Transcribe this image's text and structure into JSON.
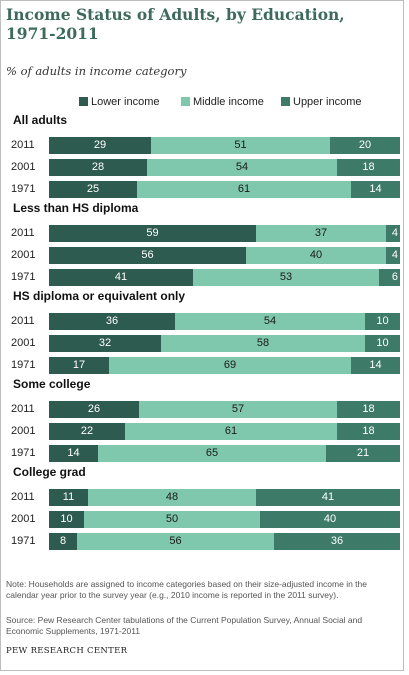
{
  "title": "Income Status of Adults, by Education, 1971-2011",
  "subtitle": "% of adults in income category",
  "colors": {
    "lower": "#2e5b4f",
    "middle": "#7fc8ae",
    "upper": "#3d7a67",
    "label_light": "#ffffff",
    "label_dark": "#1a1a1a",
    "title": "#3e6a5e"
  },
  "legend": [
    {
      "name": "Lower income",
      "color": "#2e5b4f"
    },
    {
      "name": "Middle income",
      "color": "#7fc8ae"
    },
    {
      "name": "Upper income",
      "color": "#3d7a67"
    }
  ],
  "chart_data": {
    "type": "bar",
    "stacked": true,
    "orientation": "horizontal",
    "xlim": [
      0,
      100
    ],
    "series_names": [
      "Lower income",
      "Middle income",
      "Upper income"
    ],
    "groups": [
      {
        "name": "All adults",
        "rows": [
          {
            "year": "2011",
            "values": [
              29,
              51,
              20
            ]
          },
          {
            "year": "2001",
            "values": [
              28,
              54,
              18
            ]
          },
          {
            "year": "1971",
            "values": [
              25,
              61,
              14
            ]
          }
        ]
      },
      {
        "name": "Less than HS diploma",
        "rows": [
          {
            "year": "2011",
            "values": [
              59,
              37,
              4
            ]
          },
          {
            "year": "2001",
            "values": [
              56,
              40,
              4
            ]
          },
          {
            "year": "1971",
            "values": [
              41,
              53,
              6
            ]
          }
        ]
      },
      {
        "name": "HS diploma or equivalent only",
        "rows": [
          {
            "year": "2011",
            "values": [
              36,
              54,
              10
            ]
          },
          {
            "year": "2001",
            "values": [
              32,
              58,
              10
            ]
          },
          {
            "year": "1971",
            "values": [
              17,
              69,
              14
            ]
          }
        ]
      },
      {
        "name": "Some college",
        "rows": [
          {
            "year": "2011",
            "values": [
              26,
              57,
              18
            ]
          },
          {
            "year": "2001",
            "values": [
              22,
              61,
              18
            ]
          },
          {
            "year": "1971",
            "values": [
              14,
              65,
              21
            ]
          }
        ]
      },
      {
        "name": "College grad",
        "rows": [
          {
            "year": "2011",
            "values": [
              11,
              48,
              41
            ]
          },
          {
            "year": "2001",
            "values": [
              10,
              50,
              40
            ]
          },
          {
            "year": "1971",
            "values": [
              8,
              56,
              36
            ]
          }
        ]
      }
    ]
  },
  "note": "Note: Households are assigned to income categories based on their size-adjusted income in the calendar year prior to the survey year (e.g., 2010 income is reported in the 2011 survey).",
  "source": "Source: Pew Research Center tabulations of the Current Population Survey, Annual Social and Economic Supplements, 1971-2011",
  "organization": "PEW RESEARCH CENTER"
}
